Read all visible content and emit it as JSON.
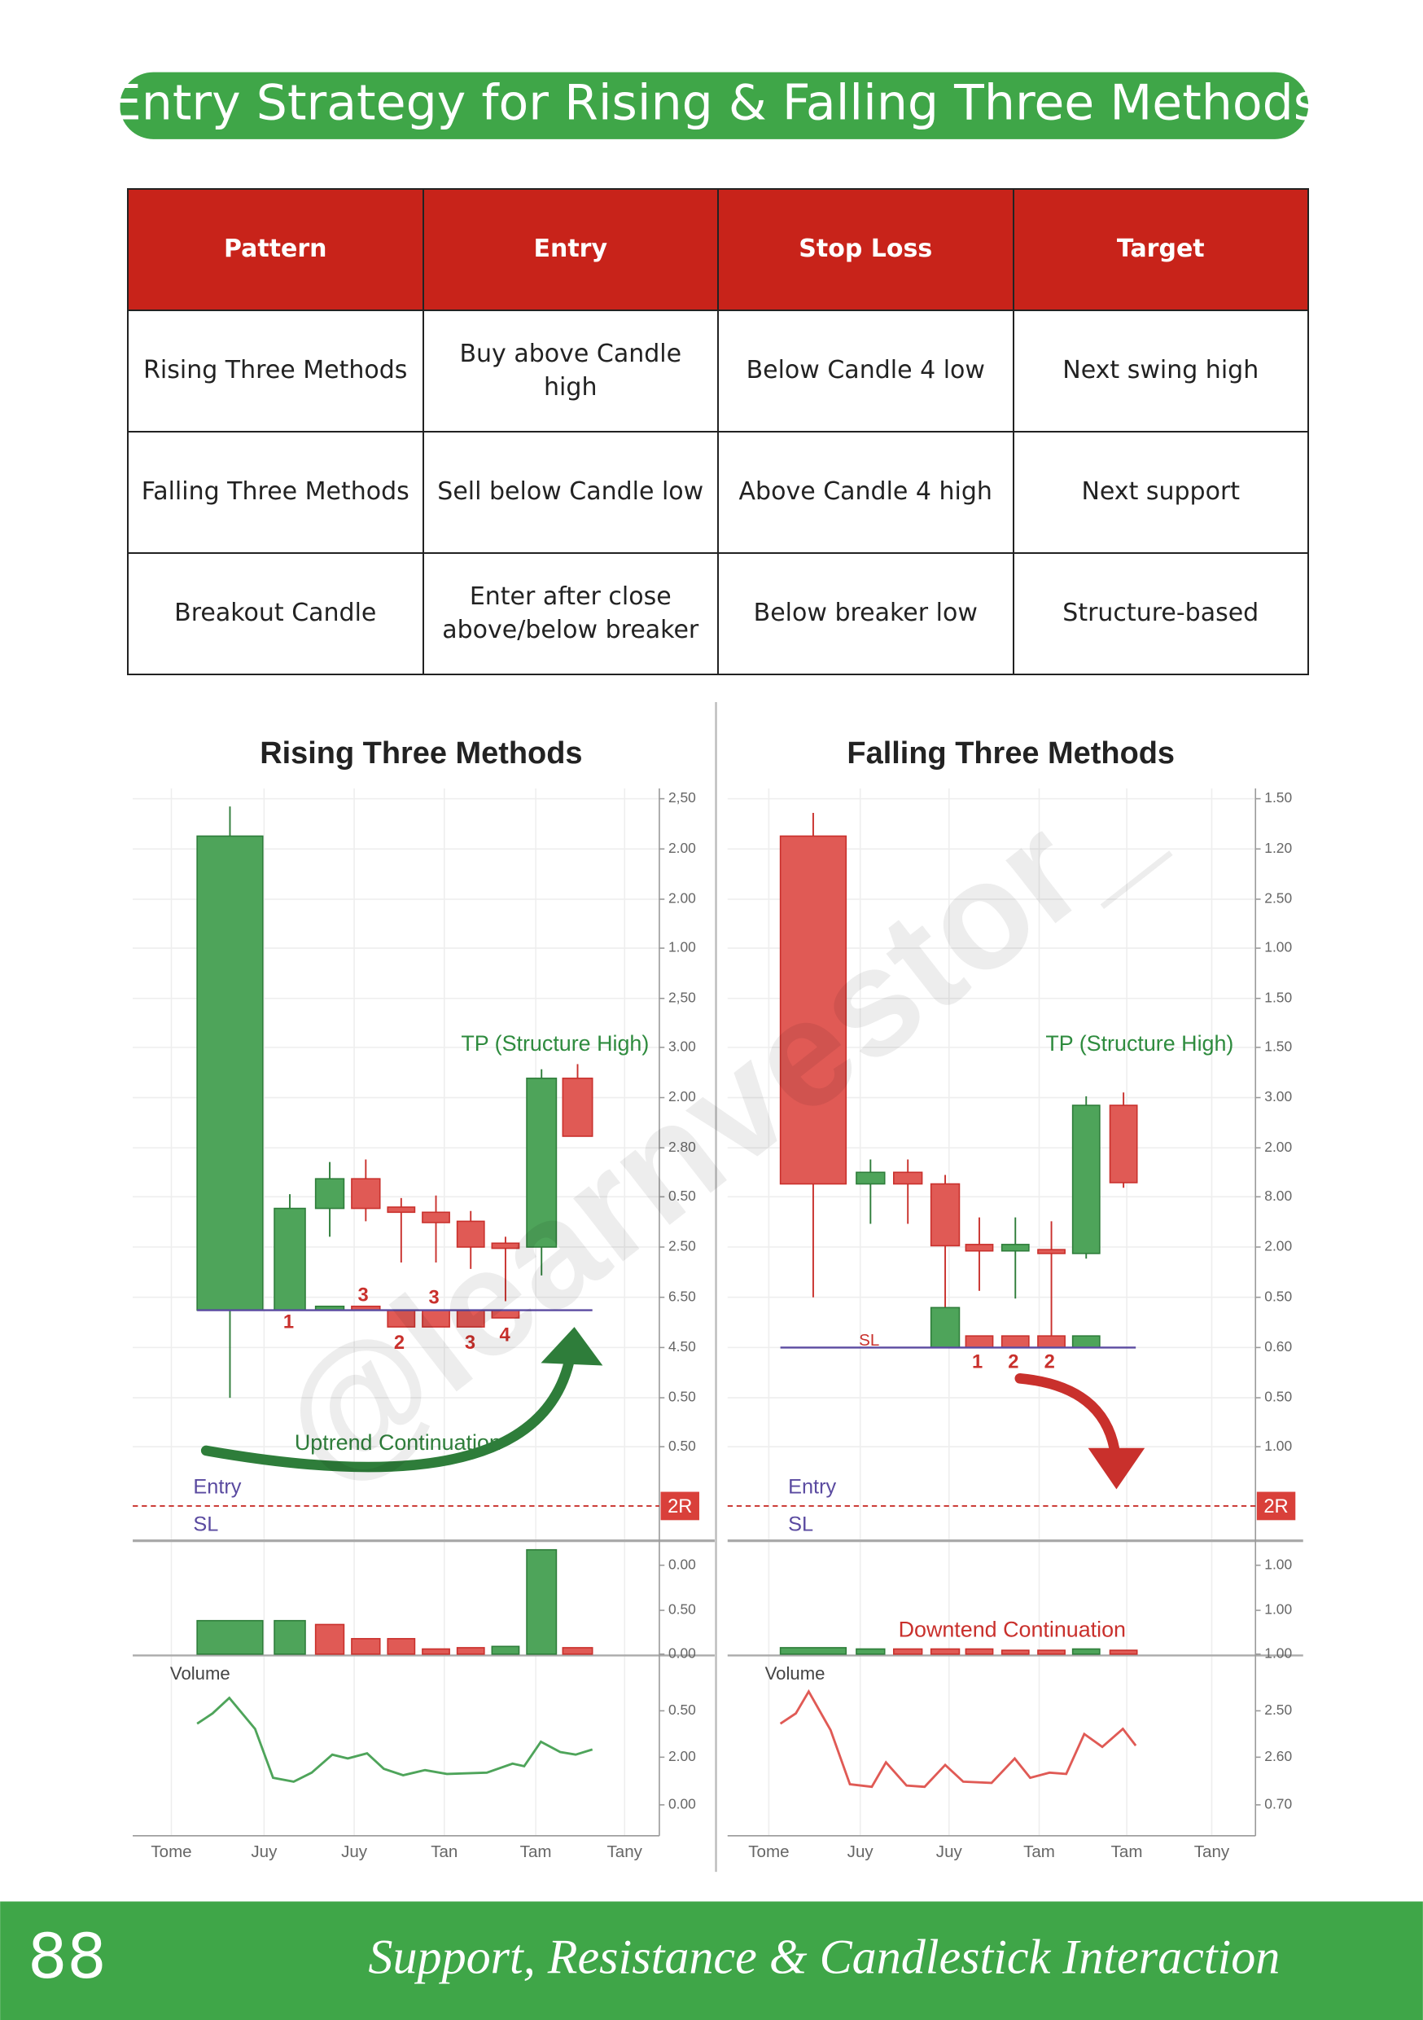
{
  "header": {
    "title": "Entry Strategy for Rising & Falling Three Methods"
  },
  "table": {
    "columns": [
      "Pattern",
      "Entry",
      "Stop Loss",
      "Target"
    ],
    "rows": [
      [
        "Rising Three Methods",
        "Buy above Candle high",
        "Below Candle 4 low",
        "Next swing high"
      ],
      [
        "Falling Three Methods",
        "Sell below Candle low",
        "Above Candle 4 high",
        "Next support"
      ],
      [
        "Breakout Candle",
        "Enter after close above/below breaker",
        "Below breaker low",
        "Structure-based"
      ]
    ]
  },
  "figures": [
    {
      "title": "Rising Three Methods",
      "y_labels": [
        "2,50",
        "2.00",
        "2.00",
        "1.00",
        "2,50",
        "3.00",
        "2.00",
        "2.80",
        "0.50",
        "2.50",
        "6.50",
        "4.50",
        "0.50",
        "0.50"
      ],
      "volume_axis_labels": [
        "0.00",
        "0.50",
        "0.00"
      ],
      "lower_axis_labels": [
        "0.50",
        "2.00",
        "0.00"
      ],
      "x_labels": [
        "Tome",
        "Juy",
        "Juy",
        "Tan",
        "Tam",
        "Tany"
      ],
      "tp_label": "TP (Structure High)",
      "trend_label": "Uptrend Continuation",
      "entry_label": "Entry",
      "sl_label": "SL",
      "risk_label": "2R",
      "candle_numbers": [
        "1",
        "3",
        "3",
        "2",
        "3",
        "4"
      ],
      "volume_label": "Volume"
    },
    {
      "title": "Falling Three Methods",
      "y_labels": [
        "1.50",
        "1.20",
        "2.50",
        "1.00",
        "1.50",
        "1.50",
        "3.00",
        "2.00",
        "8.00",
        "2.00",
        "0.50",
        "0.60",
        "0.50",
        "1.00"
      ],
      "volume_axis_labels": [
        "1.00",
        "1.00",
        "1.00"
      ],
      "lower_axis_labels": [
        "2.50",
        "2.60",
        "0.70"
      ],
      "x_labels": [
        "Tome",
        "Juy",
        "Juy",
        "Tam",
        "Tam",
        "Tany"
      ],
      "tp_label": "TP (Structure High)",
      "trend_label": "Downtend Continuation",
      "entry_label": "Entry",
      "sl_label": "SL",
      "risk_label": "2R",
      "baseline_label": "SL",
      "candle_numbers": [
        "1",
        "2",
        "2"
      ],
      "volume_label": "Volume"
    }
  ],
  "watermark": "@learnvestor_",
  "footer": {
    "page_number": "88",
    "text": "Support, Resistance & Candlestick Interaction"
  }
}
